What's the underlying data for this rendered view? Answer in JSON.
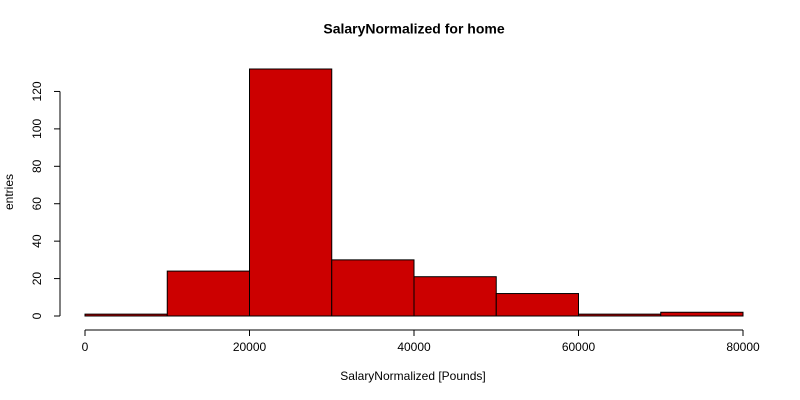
{
  "chart_data": {
    "type": "histogram",
    "title": "SalaryNormalized for home",
    "x_label": "SalaryNormalized [Pounds]",
    "y_label": "entries",
    "bins": [
      0,
      10000,
      20000,
      30000,
      40000,
      50000,
      60000,
      70000,
      80000
    ],
    "values": [
      1,
      24,
      132,
      30,
      21,
      12,
      1,
      2
    ],
    "color": "#cc0000",
    "xlim": [
      0,
      80000
    ],
    "ylim": [
      0,
      132
    ],
    "xticks": [
      0,
      20000,
      40000,
      60000,
      80000
    ],
    "yticks": [
      0,
      20,
      40,
      60,
      80,
      100,
      120
    ]
  }
}
